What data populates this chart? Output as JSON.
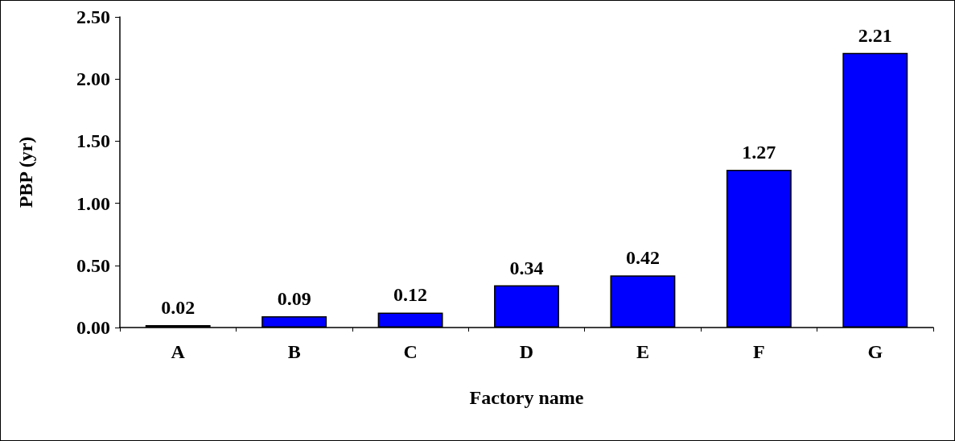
{
  "chart_data": {
    "type": "bar",
    "xlabel": "Factory name",
    "ylabel": "PBP (yr)",
    "categories": [
      "A",
      "B",
      "C",
      "D",
      "E",
      "F",
      "G"
    ],
    "values": [
      0.02,
      0.09,
      0.12,
      0.34,
      0.42,
      1.27,
      2.21
    ],
    "color": "#0000ff",
    "ylim": [
      0,
      2.5
    ],
    "yticks": [
      {
        "value": 0,
        "label": "0.00"
      },
      {
        "value": 0.5,
        "label": "0.50"
      },
      {
        "value": 1,
        "label": "1.00"
      },
      {
        "value": 1.5,
        "label": "1.50"
      },
      {
        "value": 2,
        "label": "2.00"
      },
      {
        "value": 2.5,
        "label": "2.50"
      }
    ],
    "data_labels": true
  }
}
